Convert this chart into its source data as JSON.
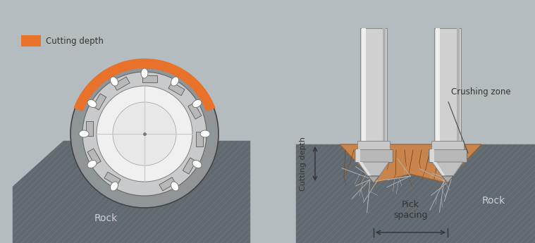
{
  "background_color": "#b5bcbf",
  "rock_color": "#606970",
  "rock_edge_color": "#505860",
  "cutting_depth_color": "#e8722a",
  "drum_outer_color": "#909598",
  "drum_ring_color": "#c8cacc",
  "drum_face_color": "#f0f0f0",
  "drum_inner_color": "#e0e0e0",
  "pick_head_color": "#e8e8e8",
  "pick_body_color": "#b8b8b8",
  "pick_dark_color": "#888888",
  "crush_zone_color": "#c8844a",
  "crush_edge_color": "#9a6030",
  "shaft_light_color": "#e8e8e8",
  "shaft_mid_color": "#c0c2c4",
  "shaft_dark_color": "#909295",
  "text_color": "#333333",
  "dim_line_color": "#333333",
  "legend_label": "Cutting depth",
  "label_rock_left": "Rock",
  "label_rock_right": "Rock",
  "label_pick_spacing": "Pick\nspacing",
  "label_cutting_depth": "Cutting depth",
  "label_crushing_zone": "Crushing zone",
  "hatch_color": "#6a7278",
  "crosshair_color": "#c8c8c8",
  "root_color": "#b0b0b0"
}
